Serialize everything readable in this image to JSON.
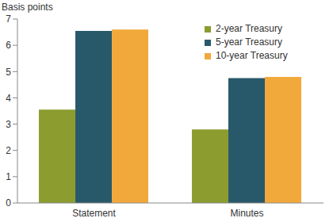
{
  "chart_data": {
    "type": "bar",
    "y_label": "Basis points",
    "categories": [
      "Statement",
      "Minutes"
    ],
    "series": [
      {
        "name": "2-year Treasury",
        "color": "#8c9c2e",
        "values": [
          3.55,
          2.8
        ]
      },
      {
        "name": "5-year Treasury",
        "color": "#28596a",
        "values": [
          6.55,
          4.75
        ]
      },
      {
        "name": "10-year Treasury",
        "color": "#f2a93b",
        "values": [
          6.6,
          4.8
        ]
      }
    ],
    "ylim": [
      0,
      7
    ],
    "yticks": [
      0,
      1,
      2,
      3,
      4,
      5,
      6,
      7
    ],
    "grid": false,
    "legend": "upper right"
  }
}
